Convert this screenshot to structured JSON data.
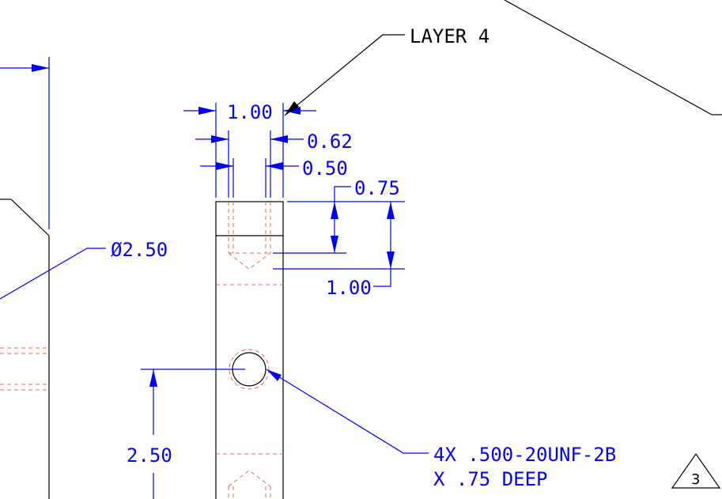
{
  "labels": {
    "layer_callout": "LAYER 4",
    "dim_width_overall": "1.00",
    "dim_062": "0.62",
    "dim_050": "0.50",
    "dim_075": "0.75",
    "dim_depth": "1.00",
    "dim_diameter": "Ø2.50",
    "dim_height": "2.50",
    "thread_note_line1": "4X .500-20UNF-2B",
    "thread_note_line2": "X .75 DEEP",
    "revision_marker": "3"
  },
  "colors": {
    "geometry": "#000000",
    "dimension": "#0000ff",
    "hidden": "#e8685e",
    "background": "#ffffff"
  }
}
